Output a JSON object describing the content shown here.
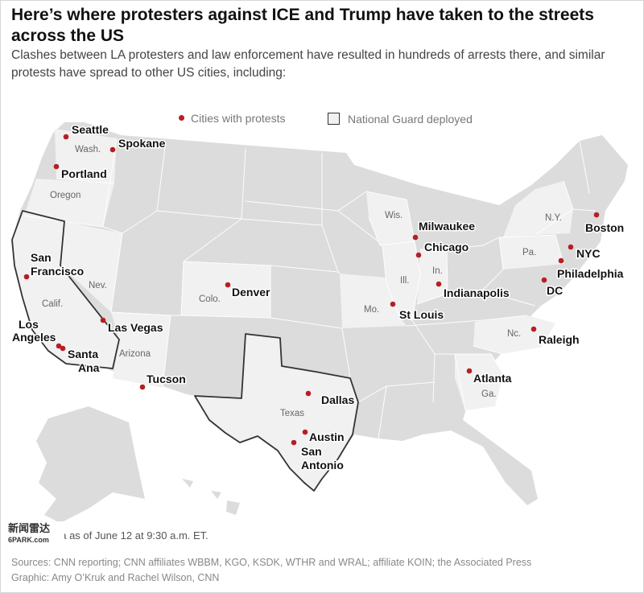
{
  "header": {
    "title": "Here’s where protesters against ICE and Trump have taken to the streets across the US",
    "subtitle": "Clashes between LA protesters and law enforcement have resulted in hundreds of arrests there, and similar protests have spread to other US cities, including:"
  },
  "legend": {
    "cities_label": "Cities with protests",
    "guard_label": "National Guard deployed",
    "city_color": "#b51f24"
  },
  "colors": {
    "land": "#dcdcdc",
    "highlight_states": "#f1f1f1",
    "borders": "#ffffff",
    "guard_outline": "#333333"
  },
  "cities": [
    {
      "name": "Seattle",
      "lines": [
        "Seattle"
      ]
    },
    {
      "name": "Spokane",
      "lines": [
        "Spokane"
      ]
    },
    {
      "name": "Portland",
      "lines": [
        "Portland"
      ]
    },
    {
      "name": "San Francisco",
      "lines": [
        "San",
        "Francisco"
      ]
    },
    {
      "name": "Los Angeles",
      "lines": [
        "Los",
        "Angeles"
      ]
    },
    {
      "name": "Santa Ana",
      "lines": [
        "Santa",
        "Ana"
      ]
    },
    {
      "name": "Las Vegas",
      "lines": [
        "Las Vegas"
      ]
    },
    {
      "name": "Tucson",
      "lines": [
        "Tucson"
      ]
    },
    {
      "name": "Denver",
      "lines": [
        "Denver"
      ]
    },
    {
      "name": "Dallas",
      "lines": [
        "Dallas"
      ]
    },
    {
      "name": "Austin",
      "lines": [
        "Austin"
      ]
    },
    {
      "name": "San Antonio",
      "lines": [
        "San",
        "Antonio"
      ]
    },
    {
      "name": "Milwaukee",
      "lines": [
        "Milwaukee"
      ]
    },
    {
      "name": "Chicago",
      "lines": [
        "Chicago"
      ]
    },
    {
      "name": "Indianapolis",
      "lines": [
        "Indianapolis"
      ]
    },
    {
      "name": "St Louis",
      "lines": [
        "St Louis"
      ]
    },
    {
      "name": "Atlanta",
      "lines": [
        "Atlanta"
      ]
    },
    {
      "name": "Raleigh",
      "lines": [
        "Raleigh"
      ]
    },
    {
      "name": "DC",
      "lines": [
        "DC"
      ]
    },
    {
      "name": "Philadelphia",
      "lines": [
        "Philadelphia"
      ]
    },
    {
      "name": "NYC",
      "lines": [
        "NYC"
      ]
    },
    {
      "name": "Boston",
      "lines": [
        "Boston"
      ]
    }
  ],
  "state_labels": [
    "Wash.",
    "Oregon",
    "Calif.",
    "Nev.",
    "Arizona",
    "Colo.",
    "Texas",
    "Wis.",
    "Ill.",
    "In.",
    "Mo.",
    "N.Y.",
    "Pa.",
    "Nc.",
    "Ga."
  ],
  "national_guard_states": [
    "California",
    "Texas"
  ],
  "footer": {
    "timestamp": "Data as of June 12 at 9:30 a.m. ET.",
    "watermark": "新闻雷达",
    "watermark_sub": "6PARK.com",
    "sources": "Sources: CNN reporting; CNN affiliates WBBM, KGO, KSDK, WTHR and WRAL; affiliate KOIN; the Associated Press",
    "graphic": "Graphic: Amy O’Kruk and Rachel Wilson, CNN"
  }
}
